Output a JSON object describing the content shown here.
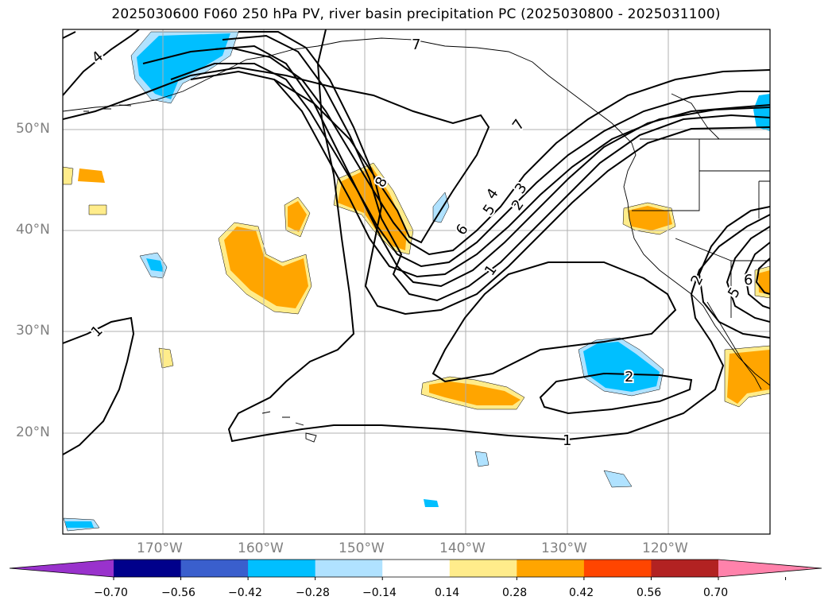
{
  "title": "2025030600 F060 250 hPa PV, river basin precipitation PC (2025030800 - 2025031100)",
  "lat_labels": [
    "50°N",
    "40°N",
    "30°N",
    "20°N"
  ],
  "lon_labels": [
    "170°W",
    "160°W",
    "150°W",
    "140°W",
    "130°W",
    "120°W"
  ],
  "pv_contour_labels": [
    "7",
    "4",
    "8",
    "7",
    "6",
    "5",
    "4",
    "3",
    "2",
    "1",
    "1",
    "2",
    "1",
    "2",
    "6",
    "5"
  ],
  "colorbar": {
    "ticks": [
      "−0.70",
      "−0.56",
      "−0.42",
      "−0.28",
      "−0.14",
      "0.14",
      "0.28",
      "0.42",
      "0.56",
      "0.70"
    ],
    "colors": [
      "#9932cc",
      "#00008b",
      "#3a5fcd",
      "#00bfff",
      "#b0e2ff",
      "#ffffff",
      "#ffec8b",
      "#ffa500",
      "#ff4500",
      "#b22222",
      "#ff82ab"
    ]
  },
  "shading_colors": {
    "positive_light": "#ffec8b",
    "positive_mid": "#ffa500",
    "negative_light": "#b0e2ff",
    "negative_mid": "#00bfff"
  }
}
